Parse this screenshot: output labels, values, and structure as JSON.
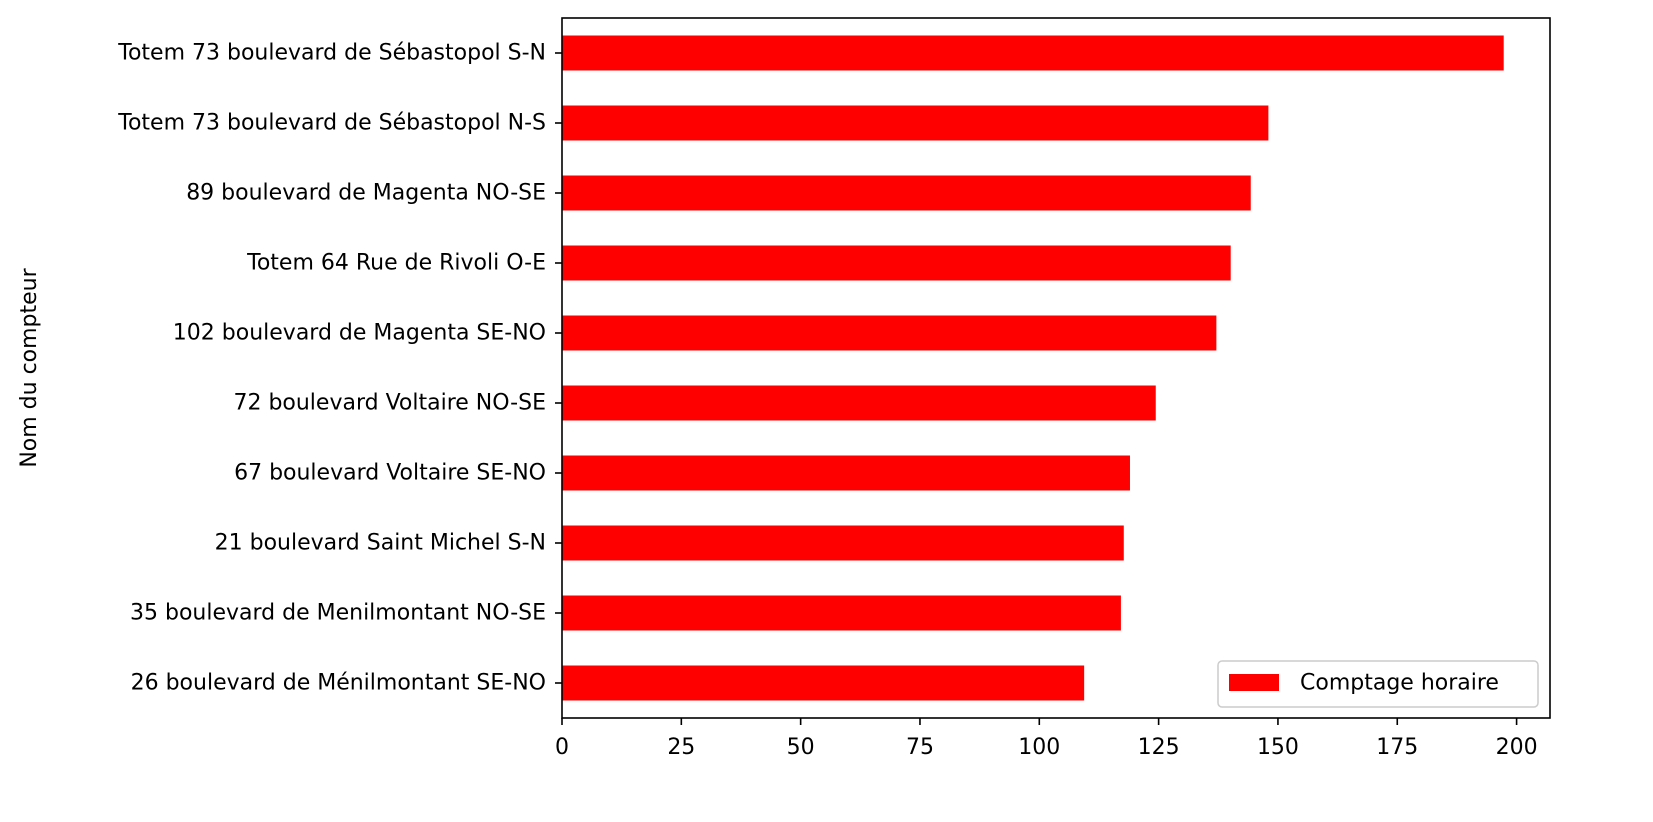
{
  "chart_data": {
    "type": "bar",
    "orientation": "horizontal",
    "categories": [
      "Totem 73 boulevard de Sébastopol S-N",
      "Totem 73 boulevard de Sébastopol N-S",
      "89 boulevard de Magenta NO-SE",
      "Totem 64 Rue de Rivoli O-E",
      "102 boulevard de Magenta SE-NO",
      "72 boulevard Voltaire NO-SE",
      "67 boulevard Voltaire SE-NO",
      "21 boulevard Saint Michel S-N",
      "35 boulevard de Menilmontant NO-SE",
      "26 boulevard de Ménilmontant SE-NO"
    ],
    "series": [
      {
        "name": "Comptage horaire",
        "color": "#ff0000",
        "values": [
          197.3,
          148.0,
          144.3,
          140.1,
          137.1,
          124.4,
          119.0,
          117.7,
          117.1,
          109.4
        ]
      }
    ],
    "xlabel": "",
    "ylabel": "Nom du compteur",
    "xlim": [
      0,
      207
    ],
    "xticks": [
      0,
      25,
      50,
      75,
      100,
      125,
      150,
      175,
      200
    ],
    "grid": false,
    "legend_position": "bottom-right"
  }
}
